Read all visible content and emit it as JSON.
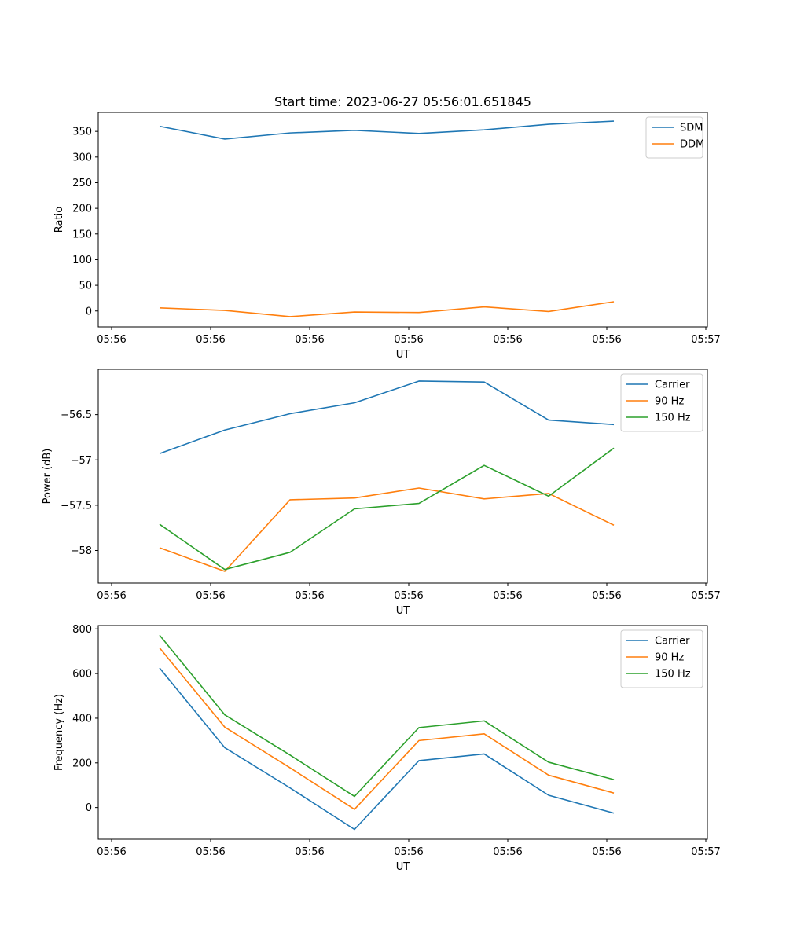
{
  "title": "Start time: 2023-06-27 05:56:01.651845",
  "colors": {
    "blue": "#1f77b4",
    "orange": "#ff7f0e",
    "green": "#2ca02c",
    "axes": "#000000",
    "legend_border": "#cccccc"
  },
  "chart_data": [
    {
      "type": "line",
      "title": "Start time: 2023-06-27 05:56:01.651845",
      "xlabel": "UT",
      "ylabel": "Ratio",
      "x_tick_labels": [
        "05:56",
        "05:56",
        "05:56",
        "05:56",
        "05:56",
        "05:56",
        "05:57"
      ],
      "y_ticks": [
        0,
        50,
        100,
        150,
        200,
        250,
        300,
        350
      ],
      "ylim": [
        -31,
        387
      ],
      "legend": "top-right",
      "grid": false,
      "series": [
        {
          "name": "SDM",
          "color": "blue",
          "values": [
            360,
            335,
            347,
            352,
            346,
            353,
            364,
            370
          ]
        },
        {
          "name": "DDM",
          "color": "orange",
          "values": [
            6,
            1,
            -11,
            -2,
            -3,
            8,
            -1,
            18
          ]
        }
      ]
    },
    {
      "type": "line",
      "xlabel": "UT",
      "ylabel": "Power (dB)",
      "x_tick_labels": [
        "05:56",
        "05:56",
        "05:56",
        "05:56",
        "05:56",
        "05:56",
        "05:57"
      ],
      "y_ticks": [
        -58.0,
        -57.5,
        -57.0,
        -56.5
      ],
      "ylim": [
        -58.36,
        -56.0
      ],
      "legend": "top-right",
      "grid": false,
      "series": [
        {
          "name": "Carrier",
          "color": "blue",
          "values": [
            -56.93,
            -56.67,
            -56.49,
            -56.37,
            -56.13,
            -56.14,
            -56.56,
            -56.61
          ]
        },
        {
          "name": "90 Hz",
          "color": "orange",
          "values": [
            -57.97,
            -58.23,
            -57.44,
            -57.42,
            -57.31,
            -57.43,
            -57.37,
            -57.72
          ]
        },
        {
          "name": "150 Hz",
          "color": "green",
          "values": [
            -57.71,
            -58.21,
            -58.02,
            -57.54,
            -57.48,
            -57.06,
            -57.4,
            -56.87
          ]
        }
      ]
    },
    {
      "type": "line",
      "xlabel": "UT",
      "ylabel": "Frequency (Hz)",
      "x_tick_labels": [
        "05:56",
        "05:56",
        "05:56",
        "05:56",
        "05:56",
        "05:56",
        "05:57"
      ],
      "y_ticks": [
        0,
        200,
        400,
        600,
        800
      ],
      "ylim": [
        -142,
        815
      ],
      "legend": "top-right",
      "grid": false,
      "series": [
        {
          "name": "Carrier",
          "color": "blue",
          "values": [
            625,
            268,
            88,
            -98,
            210,
            240,
            55,
            -25
          ]
        },
        {
          "name": "90 Hz",
          "color": "orange",
          "values": [
            715,
            360,
            178,
            -8,
            300,
            330,
            145,
            65
          ]
        },
        {
          "name": "150 Hz",
          "color": "green",
          "values": [
            772,
            415,
            235,
            50,
            358,
            388,
            203,
            125
          ]
        }
      ]
    }
  ]
}
